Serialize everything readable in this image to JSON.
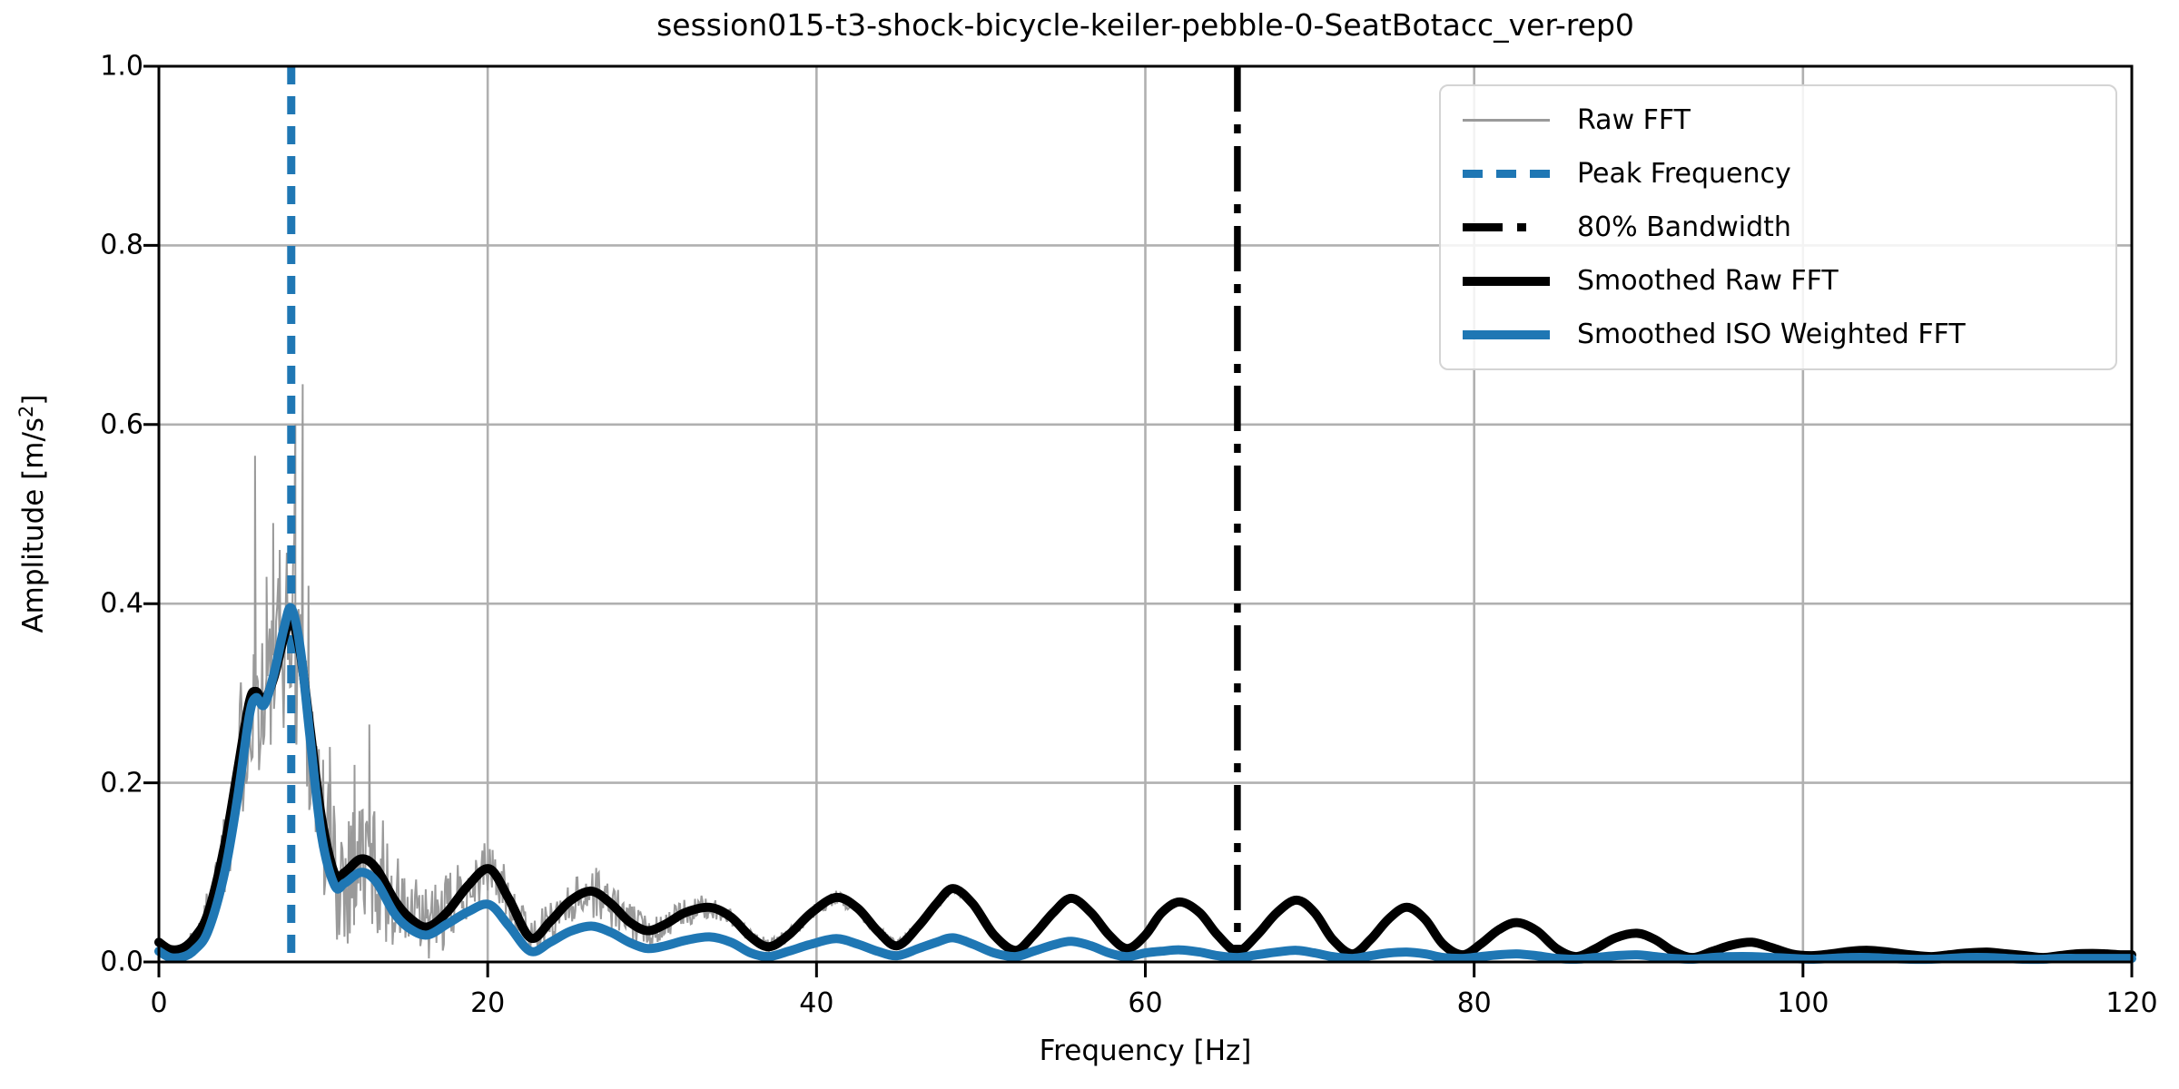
{
  "chart_data": {
    "type": "line",
    "title": "session015-t3-shock-bicycle-keiler-pebble-0-SeatBotacc_ver-rep0",
    "xlabel": "Frequency [Hz]",
    "ylabel": "Amplitude [m/s²]",
    "xlim": [
      0,
      120
    ],
    "ylim": [
      0,
      1.0
    ],
    "xtick_values": [
      0,
      20,
      40,
      60,
      80,
      100,
      120
    ],
    "xtick_labels": [
      "0",
      "20",
      "40",
      "60",
      "80",
      "100",
      "120"
    ],
    "ytick_values": [
      0.0,
      0.2,
      0.4,
      0.6,
      0.8,
      1.0
    ],
    "ytick_labels": [
      "0.0",
      "0.2",
      "0.4",
      "0.6",
      "0.8",
      "1.0"
    ],
    "grid": true,
    "grid_color": "#b0b0b0",
    "legend_position": "upper right",
    "annotations": {
      "peak_frequency_hz": 8.05,
      "bandwidth_80_hz": 65.6
    },
    "series": [
      {
        "name": "Raw FFT",
        "type": "noisy_line",
        "color": "#9a9a9a",
        "width": 2,
        "x_range": [
          1.8,
          49
        ],
        "spread_envelope": [
          [
            1.8,
            0.012
          ],
          [
            3,
            0.03
          ],
          [
            4.5,
            0.07
          ],
          [
            5.5,
            0.1
          ],
          [
            6.5,
            0.09
          ],
          [
            7.5,
            0.1
          ],
          [
            8.5,
            0.13
          ],
          [
            9.5,
            0.1
          ],
          [
            10.5,
            0.09
          ],
          [
            12,
            0.085
          ],
          [
            13.5,
            0.07
          ],
          [
            15,
            0.05
          ],
          [
            17,
            0.045
          ],
          [
            19,
            0.035
          ],
          [
            21,
            0.03
          ],
          [
            23,
            0.022
          ],
          [
            25,
            0.025
          ],
          [
            27,
            0.03
          ],
          [
            29,
            0.02
          ],
          [
            31,
            0.016
          ],
          [
            33,
            0.015
          ],
          [
            35,
            0.009
          ],
          [
            38,
            0.008
          ],
          [
            42,
            0.008
          ],
          [
            46,
            0.006
          ],
          [
            49,
            0.004
          ]
        ],
        "spikes": [
          [
            5.85,
            0.565
          ],
          [
            6.55,
            0.43
          ],
          [
            6.95,
            0.49
          ],
          [
            7.35,
            0.46
          ],
          [
            8.3,
            0.6
          ],
          [
            8.75,
            0.645
          ],
          [
            9.1,
            0.42
          ],
          [
            10.4,
            0.24
          ],
          [
            11.9,
            0.22
          ],
          [
            12.8,
            0.265
          ],
          [
            20.3,
            0.125
          ],
          [
            26.6,
            0.105
          ]
        ]
      },
      {
        "name": "Peak Frequency",
        "type": "vline",
        "x": 8.05,
        "color": "#1f77b4",
        "style": "dashed",
        "width": 9
      },
      {
        "name": "80% Bandwidth",
        "type": "vline",
        "x": 65.6,
        "color": "#000000",
        "style": "dashdot",
        "width": 7.5
      },
      {
        "name": "Smoothed Raw FFT",
        "type": "line",
        "color": "#000000",
        "width": 10,
        "points": [
          [
            0,
            0.022
          ],
          [
            0.7,
            0.014
          ],
          [
            1.5,
            0.016
          ],
          [
            2.2,
            0.028
          ],
          [
            3,
            0.055
          ],
          [
            4,
            0.13
          ],
          [
            4.8,
            0.215
          ],
          [
            5.5,
            0.29
          ],
          [
            5.9,
            0.302
          ],
          [
            6.4,
            0.292
          ],
          [
            7,
            0.318
          ],
          [
            7.6,
            0.362
          ],
          [
            8.05,
            0.382
          ],
          [
            8.6,
            0.345
          ],
          [
            9.2,
            0.26
          ],
          [
            9.9,
            0.16
          ],
          [
            10.7,
            0.098
          ],
          [
            11.3,
            0.1
          ],
          [
            12.3,
            0.115
          ],
          [
            13.2,
            0.105
          ],
          [
            14.3,
            0.07
          ],
          [
            15.2,
            0.05
          ],
          [
            16.3,
            0.039
          ],
          [
            17.5,
            0.055
          ],
          [
            18.8,
            0.085
          ],
          [
            20.1,
            0.104
          ],
          [
            21.3,
            0.07
          ],
          [
            22.6,
            0.027
          ],
          [
            23.8,
            0.045
          ],
          [
            25,
            0.068
          ],
          [
            26.3,
            0.079
          ],
          [
            27.5,
            0.065
          ],
          [
            28.6,
            0.045
          ],
          [
            29.7,
            0.035
          ],
          [
            30.8,
            0.042
          ],
          [
            32,
            0.055
          ],
          [
            33.5,
            0.061
          ],
          [
            34.8,
            0.05
          ],
          [
            36,
            0.028
          ],
          [
            37.1,
            0.017
          ],
          [
            38.3,
            0.03
          ],
          [
            39.7,
            0.055
          ],
          [
            41.2,
            0.072
          ],
          [
            42.5,
            0.06
          ],
          [
            43.7,
            0.035
          ],
          [
            44.9,
            0.018
          ],
          [
            46.2,
            0.04
          ],
          [
            47.3,
            0.065
          ],
          [
            48.3,
            0.082
          ],
          [
            49.5,
            0.065
          ],
          [
            50.8,
            0.03
          ],
          [
            52.1,
            0.013
          ],
          [
            53.2,
            0.03
          ],
          [
            54.4,
            0.055
          ],
          [
            55.5,
            0.071
          ],
          [
            56.7,
            0.055
          ],
          [
            57.8,
            0.03
          ],
          [
            58.9,
            0.015
          ],
          [
            60,
            0.03
          ],
          [
            61,
            0.055
          ],
          [
            62.1,
            0.067
          ],
          [
            63.3,
            0.055
          ],
          [
            64.4,
            0.03
          ],
          [
            65.6,
            0.012
          ],
          [
            66.8,
            0.03
          ],
          [
            68,
            0.055
          ],
          [
            69.2,
            0.069
          ],
          [
            70.3,
            0.055
          ],
          [
            71.4,
            0.025
          ],
          [
            72.6,
            0.009
          ],
          [
            73.7,
            0.025
          ],
          [
            74.8,
            0.048
          ],
          [
            75.9,
            0.061
          ],
          [
            77,
            0.048
          ],
          [
            78.1,
            0.02
          ],
          [
            79.3,
            0.008
          ],
          [
            80.4,
            0.02
          ],
          [
            81.5,
            0.036
          ],
          [
            82.6,
            0.044
          ],
          [
            83.8,
            0.035
          ],
          [
            85,
            0.015
          ],
          [
            86.2,
            0.006
          ],
          [
            87.4,
            0.015
          ],
          [
            88.6,
            0.027
          ],
          [
            89.9,
            0.032
          ],
          [
            91,
            0.025
          ],
          [
            92.1,
            0.012
          ],
          [
            93.3,
            0.005
          ],
          [
            94.5,
            0.012
          ],
          [
            95.7,
            0.019
          ],
          [
            96.9,
            0.022
          ],
          [
            98.1,
            0.016
          ],
          [
            99.3,
            0.009
          ],
          [
            100.5,
            0.007
          ],
          [
            101.7,
            0.009
          ],
          [
            102.9,
            0.012
          ],
          [
            104,
            0.013
          ],
          [
            105.2,
            0.011
          ],
          [
            106.5,
            0.008
          ],
          [
            107.8,
            0.006
          ],
          [
            108.9,
            0.008
          ],
          [
            110,
            0.01
          ],
          [
            111.2,
            0.011
          ],
          [
            112.4,
            0.009
          ],
          [
            113.5,
            0.007
          ],
          [
            114.6,
            0.005
          ],
          [
            115.6,
            0.007
          ],
          [
            116.6,
            0.009
          ],
          [
            117.6,
            0.0095
          ],
          [
            118.5,
            0.009
          ],
          [
            119.3,
            0.008
          ],
          [
            120,
            0.008
          ]
        ]
      },
      {
        "name": "Smoothed ISO Weighted FFT",
        "type": "line",
        "color": "#1f77b4",
        "width": 10,
        "points": [
          [
            0,
            0.012
          ],
          [
            0.7,
            0.005
          ],
          [
            1.5,
            0.006
          ],
          [
            2.2,
            0.014
          ],
          [
            3,
            0.035
          ],
          [
            4,
            0.1
          ],
          [
            4.8,
            0.185
          ],
          [
            5.5,
            0.275
          ],
          [
            5.9,
            0.295
          ],
          [
            6.4,
            0.287
          ],
          [
            7,
            0.322
          ],
          [
            7.6,
            0.372
          ],
          [
            8.05,
            0.395
          ],
          [
            8.6,
            0.35
          ],
          [
            9.2,
            0.25
          ],
          [
            9.9,
            0.14
          ],
          [
            10.7,
            0.085
          ],
          [
            11.3,
            0.088
          ],
          [
            12.3,
            0.1
          ],
          [
            13.2,
            0.09
          ],
          [
            14.3,
            0.055
          ],
          [
            15.2,
            0.038
          ],
          [
            16.3,
            0.03
          ],
          [
            17.5,
            0.042
          ],
          [
            18.8,
            0.056
          ],
          [
            20.1,
            0.064
          ],
          [
            21.3,
            0.04
          ],
          [
            22.6,
            0.012
          ],
          [
            23.8,
            0.022
          ],
          [
            25,
            0.034
          ],
          [
            26.3,
            0.04
          ],
          [
            27.5,
            0.033
          ],
          [
            28.6,
            0.022
          ],
          [
            29.7,
            0.015
          ],
          [
            30.8,
            0.018
          ],
          [
            32,
            0.024
          ],
          [
            33.5,
            0.028
          ],
          [
            34.8,
            0.022
          ],
          [
            36,
            0.01
          ],
          [
            37.1,
            0.006
          ],
          [
            38.3,
            0.012
          ],
          [
            39.7,
            0.02
          ],
          [
            41.2,
            0.026
          ],
          [
            42.5,
            0.02
          ],
          [
            43.7,
            0.012
          ],
          [
            44.9,
            0.007
          ],
          [
            46.2,
            0.015
          ],
          [
            47.3,
            0.022
          ],
          [
            48.3,
            0.027
          ],
          [
            49.5,
            0.02
          ],
          [
            50.8,
            0.01
          ],
          [
            52.1,
            0.006
          ],
          [
            53.2,
            0.012
          ],
          [
            54.4,
            0.019
          ],
          [
            55.5,
            0.023
          ],
          [
            56.7,
            0.018
          ],
          [
            57.8,
            0.01
          ],
          [
            58.9,
            0.006
          ],
          [
            60,
            0.01
          ],
          [
            61,
            0.012
          ],
          [
            62.1,
            0.0135
          ],
          [
            63.3,
            0.011
          ],
          [
            64.4,
            0.007
          ],
          [
            65.6,
            0.005
          ],
          [
            66.8,
            0.008
          ],
          [
            68,
            0.011
          ],
          [
            69.2,
            0.013
          ],
          [
            70.3,
            0.01
          ],
          [
            71.4,
            0.006
          ],
          [
            72.6,
            0.004
          ],
          [
            73.7,
            0.007
          ],
          [
            74.8,
            0.01
          ],
          [
            75.9,
            0.011
          ],
          [
            77,
            0.009
          ],
          [
            78.1,
            0.005
          ],
          [
            79.3,
            0.004
          ],
          [
            80.4,
            0.006
          ],
          [
            81.5,
            0.008
          ],
          [
            82.6,
            0.009
          ],
          [
            83.8,
            0.007
          ],
          [
            85,
            0.004
          ],
          [
            86.2,
            0.003
          ],
          [
            87.4,
            0.005
          ],
          [
            88.6,
            0.007
          ],
          [
            89.9,
            0.008
          ],
          [
            91,
            0.006
          ],
          [
            92.1,
            0.004
          ],
          [
            93.3,
            0.003
          ],
          [
            94.5,
            0.005
          ],
          [
            95.7,
            0.006
          ],
          [
            96.9,
            0.006
          ],
          [
            98.1,
            0.005
          ],
          [
            99.3,
            0.004
          ],
          [
            100.5,
            0.003
          ],
          [
            101.7,
            0.004
          ],
          [
            102.9,
            0.005
          ],
          [
            104,
            0.005
          ],
          [
            105.2,
            0.004
          ],
          [
            106.5,
            0.003
          ],
          [
            107.8,
            0.003
          ],
          [
            108.9,
            0.004
          ],
          [
            110,
            0.005
          ],
          [
            111.2,
            0.005
          ],
          [
            112.4,
            0.004
          ],
          [
            113.5,
            0.003
          ],
          [
            114.6,
            0.003
          ],
          [
            115.6,
            0.004
          ],
          [
            116.6,
            0.004
          ],
          [
            117.6,
            0.004
          ],
          [
            118.5,
            0.004
          ],
          [
            119.3,
            0.004
          ],
          [
            120,
            0.004
          ]
        ]
      }
    ]
  }
}
